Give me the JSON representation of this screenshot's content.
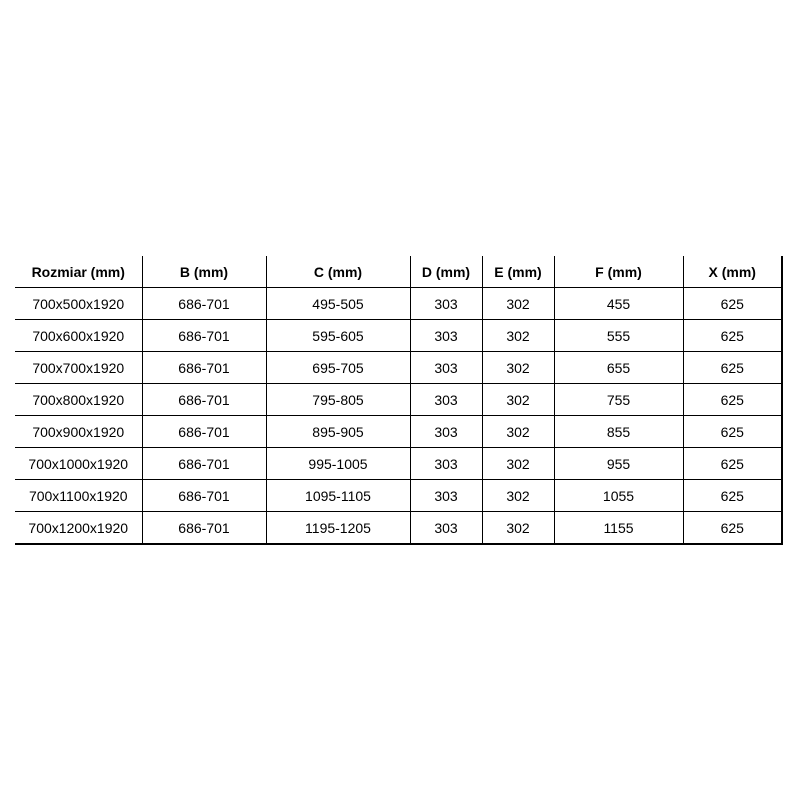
{
  "table": {
    "headers": [
      "Rozmiar (mm)",
      "B (mm)",
      "C (mm)",
      "D (mm)",
      "E (mm)",
      "F (mm)",
      "X (mm)"
    ],
    "rows": [
      [
        "700x500x1920",
        "686-701",
        "495-505",
        "303",
        "302",
        "455",
        "625"
      ],
      [
        "700x600x1920",
        "686-701",
        "595-605",
        "303",
        "302",
        "555",
        "625"
      ],
      [
        "700x700x1920",
        "686-701",
        "695-705",
        "303",
        "302",
        "655",
        "625"
      ],
      [
        "700x800x1920",
        "686-701",
        "795-805",
        "303",
        "302",
        "755",
        "625"
      ],
      [
        "700x900x1920",
        "686-701",
        "895-905",
        "303",
        "302",
        "855",
        "625"
      ],
      [
        "700x1000x1920",
        "686-701",
        "995-1005",
        "303",
        "302",
        "955",
        "625"
      ],
      [
        "700x1100x1920",
        "686-701",
        "1095-1105",
        "303",
        "302",
        "1055",
        "625"
      ],
      [
        "700x1200x1920",
        "686-701",
        "1195-1205",
        "303",
        "302",
        "1155",
        "625"
      ]
    ]
  }
}
